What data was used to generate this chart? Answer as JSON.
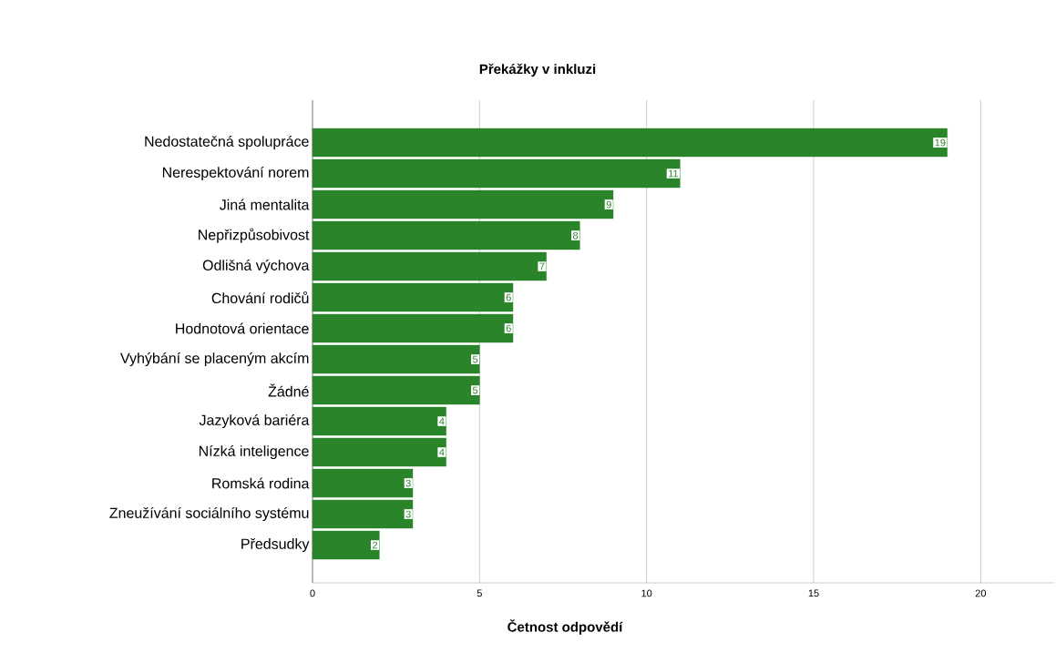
{
  "chart_data": {
    "type": "bar",
    "orientation": "horizontal",
    "title": "Překážky v inkluzi",
    "xlabel": "Četnost odpovědí",
    "categories": [
      "Nedostatečná spolupráce",
      "Nerespektování norem",
      "Jiná mentalita",
      "Nepřizpůsobivost",
      "Odlišná výchova",
      "Chování rodičů",
      "Hodnotová orientace",
      "Vyhýbání se placeným akcím",
      "Žádné",
      "Jazyková bariéra",
      "Nízká inteligence",
      "Romská rodina",
      "Zneužívání sociálního systému",
      "Předsudky"
    ],
    "values": [
      19,
      11,
      9,
      8,
      7,
      6,
      6,
      5,
      5,
      4,
      4,
      3,
      3,
      2
    ],
    "color": "#2a842a",
    "xlim": [
      0,
      22.2
    ],
    "xticks": [
      0,
      5,
      10,
      15,
      20
    ],
    "grid": "x",
    "data_labels": true
  }
}
